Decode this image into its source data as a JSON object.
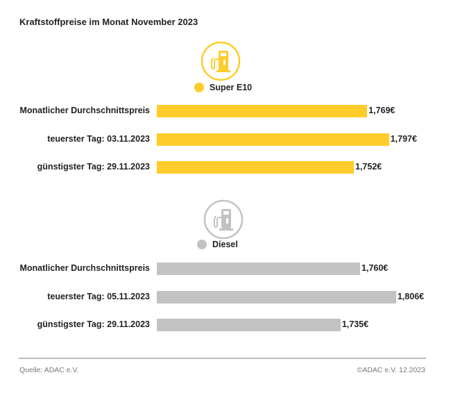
{
  "chart_data": {
    "type": "bar",
    "orientation": "horizontal",
    "title": "Kraftstoffpreise im Monat November 2023",
    "xlim": [
      1.5,
      1.82
    ],
    "grid": false,
    "groups": [
      {
        "name": "Super E10",
        "color": "#FFCC29",
        "icon": "fuel-pump-icon",
        "categories": [
          "Monatlicher Durchschnittspreis",
          "teuerster Tag: 03.11.2023",
          "günstigster Tag: 29.11.2023"
        ],
        "values": [
          1.769,
          1.797,
          1.752
        ],
        "labels": [
          "1,769€",
          "1,797€",
          "1,752€"
        ]
      },
      {
        "name": "Diesel",
        "color": "#C2C2C2",
        "icon": "fuel-pump-icon",
        "categories": [
          "Monatlicher Durchschnittspreis",
          "teuerster Tag: 05.11.2023",
          "günstigster Tag: 29.11.2023"
        ],
        "values": [
          1.76,
          1.806,
          1.735
        ],
        "labels": [
          "1,760€",
          "1,806€",
          "1,735€"
        ]
      }
    ]
  },
  "footer": {
    "source": "Quelle: ADAC e.V.",
    "copyright": "©ADAC e.V. 12.2023"
  }
}
